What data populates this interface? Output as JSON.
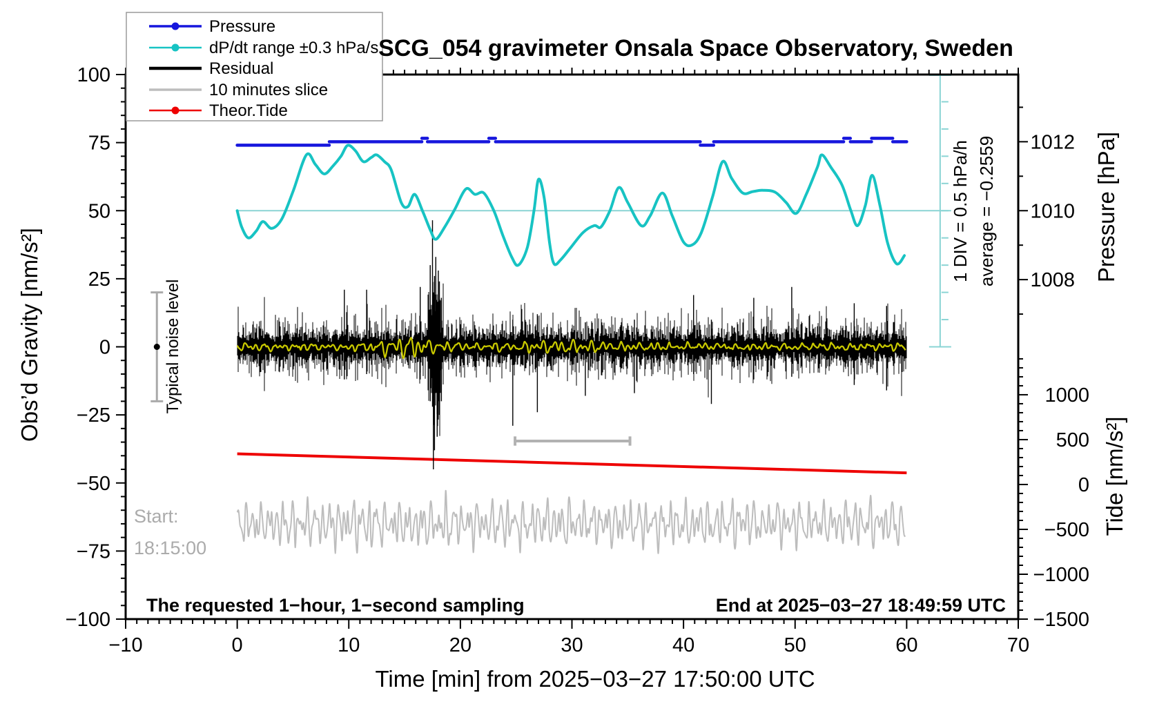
{
  "title": "SCG_054 gravimeter Onsala Space Observatory, Sweden",
  "axes": {
    "x": {
      "label": "Time [min] from 2025−03−27 17:50:00 UTC",
      "min": -10,
      "max": 70,
      "minor_step": 1,
      "tick_values": [
        -10,
        0,
        10,
        20,
        30,
        40,
        50,
        60,
        70
      ],
      "tick_labels": [
        "−10",
        "0",
        "10",
        "20",
        "30",
        "40",
        "50",
        "60",
        "70"
      ]
    },
    "y_left": {
      "label": "Obs’d Gravity [nm/s²]",
      "min": -100,
      "max": 100,
      "minor_step": 5,
      "tick_values": [
        -100,
        -75,
        -50,
        -25,
        0,
        25,
        50,
        75,
        100
      ],
      "tick_labels": [
        "−100",
        "−75",
        "−50",
        "−25",
        "0",
        "25",
        "50",
        "75",
        "100"
      ]
    },
    "y_pressure": {
      "label": "Pressure [hPa]",
      "tick_values": [
        1008,
        1010,
        1012
      ],
      "tick_labels": [
        "1008",
        "1010",
        "1012"
      ],
      "minor_values": [
        1007,
        1009,
        1011,
        1013
      ]
    },
    "y_tide": {
      "label": "Tide [nm/s²]",
      "tick_values": [
        -1500,
        -1000,
        -500,
        0,
        500,
        1000
      ],
      "tick_labels": [
        "−1500",
        "−1000",
        "−500",
        "0",
        "500",
        "1000"
      ],
      "minor_step": 100,
      "minor_min": -1500,
      "minor_max": 1400
    }
  },
  "legend": {
    "items": [
      {
        "label": "Pressure",
        "color": "#1616dd",
        "width": 3.5,
        "dot": true
      },
      {
        "label": "dP/dt range ±0.3 hPa/s",
        "color": "#17c3c3",
        "width": 2.5,
        "dot": true
      },
      {
        "label": "Residual",
        "color": "#000000",
        "width": 4.5,
        "dot": false
      },
      {
        "label": "10 minutes slice",
        "color": "#bdbdbd",
        "width": 3.5,
        "dot": false
      },
      {
        "label": "Theor.Tide",
        "color": "#ee0000",
        "width": 2.5,
        "dot": true
      }
    ]
  },
  "annotations": {
    "div_note": "1 DIV = 0.5 hPa/h",
    "average_note": "average = −0.2559",
    "noise_label": "Typical noise level",
    "start_line1": "Start:",
    "start_line2": "18:15:00",
    "bottom_left": "The requested 1−hour, 1−second sampling",
    "bottom_right": "End at 2025−03−27 18:49:59 UTC"
  },
  "colors": {
    "pressure": "#1616dd",
    "dpdt": "#17c3c3",
    "dpdt_ref": "#8ad4d4",
    "residual": "#000000",
    "residual_smooth": "#c9c900",
    "slice": "#bdbdbd",
    "tide": "#ee0000",
    "noise_bar": "#aaaaaa",
    "slice_bar": "#b2b2b2",
    "frame": "#000000"
  },
  "chart_data": {
    "type": "line",
    "x": {
      "units": "min",
      "range": [
        -10,
        70
      ]
    },
    "y_left": {
      "units": "nm/s²",
      "range": [
        -100,
        100
      ]
    },
    "reference_line": {
      "axis": "left",
      "value": 50,
      "note": "dP/dt zero line = 1010 hPa level"
    },
    "ruler": {
      "x_min": 63.0,
      "top_value": 100,
      "bottom_value": 0,
      "divisions": 10,
      "div_note": "1 DIV = 0.5 hPa/h",
      "average": -0.2559
    },
    "noise_bar": {
      "x_min": -7.2,
      "center": 0,
      "half_range": 20
    },
    "slice_bar": {
      "x_from": 24.9,
      "x_to": 35.2,
      "value": -34.6,
      "cap_half": 1.7
    },
    "series": [
      {
        "name": "Pressure",
        "axis": "pressure",
        "units": "hPa",
        "segments": [
          [
            0.0,
            8.25,
            1011.9
          ],
          [
            8.25,
            16.55,
            1012.0
          ],
          [
            16.55,
            17.05,
            1012.1
          ],
          [
            17.05,
            22.55,
            1012.0
          ],
          [
            22.55,
            23.15,
            1012.1
          ],
          [
            23.15,
            41.5,
            1012.0
          ],
          [
            41.5,
            42.7,
            1011.9
          ],
          [
            42.7,
            54.35,
            1012.0
          ],
          [
            54.35,
            54.95,
            1012.1
          ],
          [
            54.95,
            56.85,
            1012.0
          ],
          [
            56.85,
            58.75,
            1012.1
          ],
          [
            58.75,
            60.0,
            1012.0
          ]
        ]
      },
      {
        "name": "dP/dt range ±0.3 hPa/s",
        "axis": "left",
        "points": [
          [
            0,
            50
          ],
          [
            0.4,
            44
          ],
          [
            1.0,
            40
          ],
          [
            1.7,
            42.5
          ],
          [
            2.3,
            46
          ],
          [
            3.1,
            43.5
          ],
          [
            4.0,
            47
          ],
          [
            5.0,
            57
          ],
          [
            6.2,
            70.5
          ],
          [
            7.0,
            67
          ],
          [
            7.8,
            63.5
          ],
          [
            8.6,
            66.5
          ],
          [
            9.3,
            70
          ],
          [
            9.9,
            74
          ],
          [
            10.6,
            72
          ],
          [
            11.3,
            68
          ],
          [
            12.0,
            69.5
          ],
          [
            12.5,
            70.5
          ],
          [
            13.2,
            68
          ],
          [
            13.8,
            65
          ],
          [
            14.7,
            53
          ],
          [
            15.3,
            51.5
          ],
          [
            15.9,
            56
          ],
          [
            16.6,
            50
          ],
          [
            17.3,
            43
          ],
          [
            17.8,
            39.5
          ],
          [
            18.6,
            44
          ],
          [
            19.5,
            50.5
          ],
          [
            20.5,
            58
          ],
          [
            21.3,
            56
          ],
          [
            22.1,
            56.5
          ],
          [
            23.0,
            50
          ],
          [
            23.8,
            41
          ],
          [
            24.6,
            33
          ],
          [
            25.2,
            30
          ],
          [
            26.0,
            36.5
          ],
          [
            26.6,
            50
          ],
          [
            27.0,
            61.5
          ],
          [
            27.5,
            55
          ],
          [
            28.0,
            38
          ],
          [
            28.4,
            30.5
          ],
          [
            29.0,
            32
          ],
          [
            29.9,
            36.5
          ],
          [
            31.0,
            42
          ],
          [
            32.0,
            44.5
          ],
          [
            32.6,
            44
          ],
          [
            33.4,
            50
          ],
          [
            34.2,
            58.5
          ],
          [
            35.0,
            53
          ],
          [
            36.2,
            44.5
          ],
          [
            37.0,
            48
          ],
          [
            38.1,
            56.5
          ],
          [
            39.0,
            48
          ],
          [
            40.0,
            38.5
          ],
          [
            40.8,
            37.5
          ],
          [
            41.6,
            42
          ],
          [
            42.6,
            55
          ],
          [
            43.5,
            68
          ],
          [
            44.3,
            62
          ],
          [
            45.3,
            56.5
          ],
          [
            46.2,
            57
          ],
          [
            47.1,
            57.5
          ],
          [
            48.2,
            56.8
          ],
          [
            49.2,
            53
          ],
          [
            50.1,
            49
          ],
          [
            51.0,
            56
          ],
          [
            52.0,
            66
          ],
          [
            52.4,
            70.5
          ],
          [
            53.2,
            66
          ],
          [
            54.2,
            59.5
          ],
          [
            55.0,
            50
          ],
          [
            55.6,
            44.5
          ],
          [
            56.3,
            52
          ],
          [
            56.9,
            63
          ],
          [
            57.6,
            52
          ],
          [
            58.3,
            38
          ],
          [
            59.1,
            30.5
          ],
          [
            59.8,
            33.5
          ]
        ]
      },
      {
        "name": "Residual",
        "axis": "left",
        "x_from": 0,
        "x_to": 60,
        "generated_noise": {
          "seed": 20250327,
          "base_amp": 3.5,
          "rand_amp": 7.0,
          "spike_prob": 0.05,
          "spike_extra": 8.0,
          "event": {
            "center": 17.75,
            "sigma": 0.55,
            "gain": 3.2
          },
          "spikes": [
            [
              9.6,
              21,
              -12
            ],
            [
              11.6,
              21,
              -10
            ],
            [
              16.4,
              22,
              -12
            ],
            [
              17.3,
              30,
              -20
            ],
            [
              17.5,
              46.5,
              -22
            ],
            [
              17.58,
              20,
              -45
            ],
            [
              17.68,
              26,
              -38
            ],
            [
              17.8,
              33,
              -16
            ],
            [
              17.92,
              16,
              -33
            ],
            [
              18.02,
              28,
              -18
            ],
            [
              18.12,
              24,
              -25
            ],
            [
              18.3,
              18,
              -20
            ],
            [
              24.7,
              10,
              -29
            ],
            [
              26.9,
              12,
              -24
            ],
            [
              31.2,
              9,
              -18
            ],
            [
              35.6,
              10,
              -17
            ],
            [
              40.9,
              19,
              -10
            ],
            [
              42.5,
              10,
              -21
            ],
            [
              46.3,
              18,
              -12
            ],
            [
              49.7,
              22,
              -11
            ],
            [
              55.3,
              16,
              -14
            ],
            [
              58.2,
              15,
              -16
            ]
          ]
        }
      },
      {
        "name": "Residual smoothed",
        "axis": "left",
        "x_from": 0,
        "x_to": 60,
        "generated_wave": {
          "seed": 77,
          "center": 0,
          "jitter": 0.5,
          "harmonics": [
            [
              0.6,
              7.3,
              2.1
            ],
            [
              0.5,
              11.7,
              0.7
            ],
            [
              0.4,
              4.3,
              4.0
            ]
          ],
          "envelopes": [
            [
              2.2,
              15.2,
              2.8
            ],
            [
              0.8,
              30,
              6
            ]
          ],
          "clamp": [
            -6,
            6
          ]
        }
      },
      {
        "name": "10 minutes slice",
        "axis": "left",
        "x_from": 0,
        "x_to": 60,
        "generated_wave": {
          "seed": 2024,
          "center": -65,
          "jitter": 1.6,
          "harmonics": [
            [
              4.2,
              9.1,
              0.8
            ],
            [
              3.4,
              13.7,
              2.9
            ],
            [
              2.6,
              19.3,
              5.1
            ],
            [
              1.8,
              6.1,
              1.7
            ]
          ],
          "envelopes": [],
          "clamp": [
            -80,
            -50.5
          ]
        }
      },
      {
        "name": "Theor.Tide",
        "axis": "left",
        "points": [
          [
            0,
            -39.3
          ],
          [
            60,
            -46.3
          ]
        ]
      }
    ]
  }
}
